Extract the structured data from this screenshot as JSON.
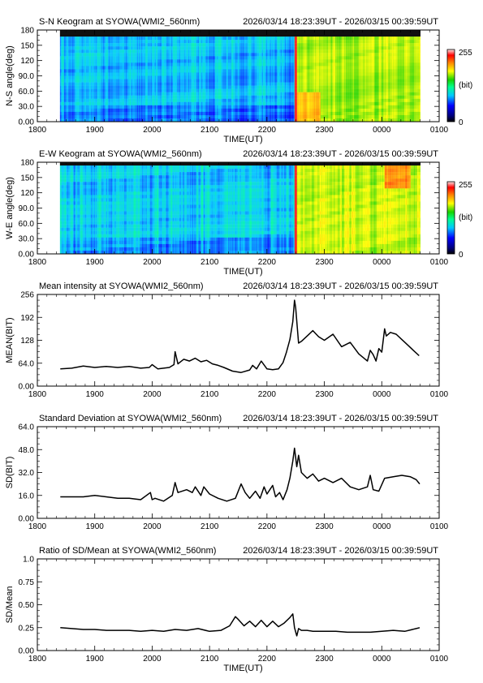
{
  "chart_data": [
    {
      "id": "sn_keogram",
      "type": "heatmap",
      "title": "S-N Keogram at SYOWA(WMI2_560nm)",
      "time_range": "2026/03/14 18:23:39UT - 2026/03/15 00:39:59UT",
      "xlabel": "TIME(UT)",
      "ylabel": "N-S angle(deg)",
      "x_ticks": [
        "1800",
        "1900",
        "2000",
        "2100",
        "2200",
        "2300",
        "0000",
        "0100"
      ],
      "y_ticks": [
        "0.00",
        "30.0",
        "60.0",
        "90.0",
        "120",
        "150",
        "180"
      ],
      "xlim": [
        18.0,
        25.0
      ],
      "ylim": [
        0,
        180
      ],
      "data_start": 18.394,
      "data_end": 24.666,
      "colorbar": {
        "min_label": "0",
        "max_label": "255",
        "unit_label": "(bit)"
      },
      "features": {
        "onset_time": 22.48,
        "pre_onset_level": 90,
        "post_onset_level": 165,
        "masked_band_deg": [
          170,
          180
        ]
      }
    },
    {
      "id": "ew_keogram",
      "type": "heatmap",
      "title": "E-W Keogram at SYOWA(WMI2_560nm)",
      "time_range": "2026/03/14 18:23:39UT - 2026/03/15 00:39:59UT",
      "xlabel": "TIME(UT)",
      "ylabel": "W-E angle(deg)",
      "x_ticks": [
        "1800",
        "1900",
        "2000",
        "2100",
        "2200",
        "2300",
        "0000",
        "0100"
      ],
      "y_ticks": [
        "0.00",
        "30.0",
        "60.0",
        "90.0",
        "120",
        "150",
        "180"
      ],
      "xlim": [
        18.0,
        25.0
      ],
      "ylim": [
        0,
        180
      ],
      "data_start": 18.394,
      "data_end": 24.666,
      "colorbar": {
        "min_label": "0",
        "max_label": "255",
        "unit_label": "(bit)"
      },
      "features": {
        "onset_time": 22.48,
        "pre_onset_level": 95,
        "post_onset_level": 170,
        "masked_band_deg": [
          176,
          180
        ]
      }
    },
    {
      "id": "mean_intensity",
      "type": "line",
      "title": "Mean intensity at SYOWA(WMI2_560nm)",
      "time_range": "2026/03/14 18:23:39UT - 2026/03/15 00:39:59UT",
      "xlabel": "",
      "ylabel": "MEAN(BIT)",
      "x_ticks": [
        "1800",
        "1900",
        "2000",
        "2100",
        "2200",
        "2300",
        "0000",
        "0100"
      ],
      "y_ticks": [
        "0.00",
        "64.0",
        "128",
        "192",
        "256"
      ],
      "xlim": [
        18.0,
        25.0
      ],
      "ylim": [
        0,
        256
      ],
      "series": [
        {
          "x": [
            18.4,
            18.6,
            18.8,
            19.0,
            19.2,
            19.4,
            19.6,
            19.8,
            19.95,
            20.0,
            20.1,
            20.3,
            20.38,
            20.4,
            20.45,
            20.55,
            20.65,
            20.75,
            20.85,
            20.95,
            21.05,
            21.15,
            21.25,
            21.4,
            21.55,
            21.7,
            21.75,
            21.82,
            21.9,
            22.0,
            22.1,
            22.2,
            22.28,
            22.34,
            22.4,
            22.45,
            22.48,
            22.5,
            22.55,
            22.6,
            22.7,
            22.8,
            22.9,
            23.0,
            23.15,
            23.3,
            23.45,
            23.6,
            23.75,
            23.8,
            23.85,
            23.9,
            23.95,
            24.0,
            24.05,
            24.08,
            24.15,
            24.25,
            24.35,
            24.45,
            24.55,
            24.65
          ],
          "y": [
            48,
            50,
            56,
            52,
            55,
            52,
            55,
            50,
            52,
            60,
            48,
            52,
            60,
            96,
            62,
            75,
            70,
            78,
            68,
            72,
            62,
            58,
            52,
            42,
            38,
            45,
            58,
            48,
            70,
            48,
            46,
            48,
            66,
            95,
            130,
            180,
            240,
            220,
            120,
            125,
            140,
            155,
            138,
            128,
            145,
            110,
            122,
            90,
            70,
            100,
            88,
            70,
            105,
            95,
            160,
            140,
            150,
            145,
            130,
            115,
            100,
            85
          ]
        }
      ]
    },
    {
      "id": "standard_deviation",
      "type": "line",
      "title": "Standard Deviation at SYOWA(WMI2_560nm)",
      "time_range": "2026/03/14 18:23:39UT - 2026/03/15 00:39:59UT",
      "xlabel": "",
      "ylabel": "SD(BIT)",
      "x_ticks": [
        "1800",
        "1900",
        "2000",
        "2100",
        "2200",
        "2300",
        "0000",
        "0100"
      ],
      "y_ticks": [
        "0.00",
        "16.0",
        "32.0",
        "48.0",
        "64.0"
      ],
      "xlim": [
        18.0,
        25.0
      ],
      "ylim": [
        0,
        64
      ],
      "series": [
        {
          "x": [
            18.4,
            18.6,
            18.8,
            19.0,
            19.2,
            19.4,
            19.6,
            19.8,
            19.97,
            20.0,
            20.05,
            20.2,
            20.35,
            20.4,
            20.45,
            20.6,
            20.7,
            20.75,
            20.85,
            20.9,
            21.0,
            21.15,
            21.3,
            21.45,
            21.55,
            21.62,
            21.7,
            21.8,
            21.88,
            21.95,
            22.0,
            22.1,
            22.15,
            22.22,
            22.28,
            22.35,
            22.4,
            22.45,
            22.48,
            22.52,
            22.55,
            22.6,
            22.7,
            22.8,
            22.9,
            23.0,
            23.15,
            23.3,
            23.45,
            23.6,
            23.75,
            23.8,
            23.85,
            23.95,
            24.05,
            24.2,
            24.35,
            24.5,
            24.6,
            24.66
          ],
          "y": [
            15,
            15,
            15,
            16,
            15,
            14,
            14,
            13,
            18,
            13,
            14,
            12,
            16,
            25,
            18,
            20,
            18,
            22,
            16,
            22,
            17,
            14,
            12,
            14,
            24,
            18,
            14,
            19,
            14,
            22,
            17,
            23,
            15,
            18,
            13,
            20,
            28,
            40,
            49,
            36,
            44,
            32,
            28,
            31,
            26,
            28,
            25,
            28,
            22,
            20,
            22,
            30,
            20,
            19,
            28,
            29,
            30,
            29,
            27,
            24
          ]
        }
      ]
    },
    {
      "id": "sd_mean_ratio",
      "type": "line",
      "title": "Ratio of SD/Mean at SYOWA(WMI2_560nm)",
      "time_range": "2026/03/14 18:23:39UT - 2026/03/15 00:39:59UT",
      "xlabel": "TIME(UT)",
      "ylabel": "SD/Mean",
      "x_ticks": [
        "1800",
        "1900",
        "2000",
        "2100",
        "2200",
        "2300",
        "0000",
        "0100"
      ],
      "y_ticks": [
        "0.00",
        "0.25",
        "0.50",
        "0.75",
        "1.0"
      ],
      "xlim": [
        18.0,
        25.0
      ],
      "ylim": [
        0,
        1.0
      ],
      "series": [
        {
          "x": [
            18.4,
            18.6,
            18.8,
            19.0,
            19.2,
            19.4,
            19.6,
            19.8,
            20.0,
            20.2,
            20.4,
            20.6,
            20.8,
            21.0,
            21.2,
            21.35,
            21.45,
            21.5,
            21.6,
            21.7,
            21.8,
            21.9,
            22.0,
            22.1,
            22.2,
            22.3,
            22.4,
            22.45,
            22.48,
            22.52,
            22.55,
            22.6,
            22.7,
            22.8,
            23.0,
            23.2,
            23.4,
            23.6,
            23.8,
            24.0,
            24.2,
            24.4,
            24.6,
            24.66
          ],
          "y": [
            0.25,
            0.24,
            0.23,
            0.23,
            0.22,
            0.22,
            0.22,
            0.21,
            0.22,
            0.21,
            0.23,
            0.22,
            0.24,
            0.21,
            0.22,
            0.27,
            0.37,
            0.34,
            0.27,
            0.32,
            0.26,
            0.33,
            0.26,
            0.32,
            0.26,
            0.3,
            0.36,
            0.4,
            0.25,
            0.16,
            0.24,
            0.22,
            0.22,
            0.21,
            0.21,
            0.21,
            0.2,
            0.2,
            0.2,
            0.21,
            0.22,
            0.21,
            0.24,
            0.25
          ]
        }
      ]
    }
  ]
}
